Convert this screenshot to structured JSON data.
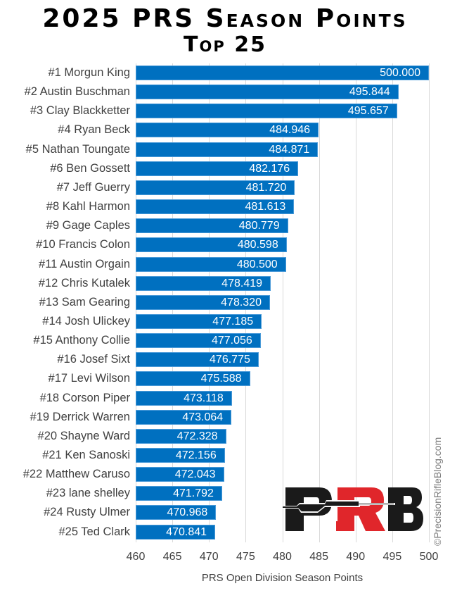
{
  "header": {
    "title": "2025 PRS Season Points",
    "subtitle": "Top 25"
  },
  "axis": {
    "xlabel": "PRS Open Division Season Points",
    "ticks": [
      "460",
      "465",
      "470",
      "475",
      "480",
      "485",
      "490",
      "495",
      "500"
    ]
  },
  "watermark": {
    "copyright": "©PrecisionRifleBlog.com",
    "logo_text": "PRB"
  },
  "colors": {
    "bar": "#0070C0",
    "logo_black": "#1a1a1a",
    "logo_red": "#e0262b"
  },
  "rows": [
    {
      "label": "#1 Morgun King",
      "value": "500.000"
    },
    {
      "label": "#2 Austin Buschman",
      "value": "495.844"
    },
    {
      "label": "#3 Clay Blackketter",
      "value": "495.657"
    },
    {
      "label": "#4 Ryan Beck",
      "value": "484.946"
    },
    {
      "label": "#5 Nathan Toungate",
      "value": "484.871"
    },
    {
      "label": "#6 Ben Gossett",
      "value": "482.176"
    },
    {
      "label": "#7 Jeff Guerry",
      "value": "481.720"
    },
    {
      "label": "#8 Kahl Harmon",
      "value": "481.613"
    },
    {
      "label": "#9 Gage Caples",
      "value": "480.779"
    },
    {
      "label": "#10 Francis Colon",
      "value": "480.598"
    },
    {
      "label": "#11 Austin Orgain",
      "value": "480.500"
    },
    {
      "label": "#12 Chris Kutalek",
      "value": "478.419"
    },
    {
      "label": "#13 Sam Gearing",
      "value": "478.320"
    },
    {
      "label": "#14 Josh Ulickey",
      "value": "477.185"
    },
    {
      "label": "#15 Anthony Collie",
      "value": "477.056"
    },
    {
      "label": "#16 Josef Sixt",
      "value": "476.775"
    },
    {
      "label": "#17 Levi Wilson",
      "value": "475.588"
    },
    {
      "label": "#18 Corson Piper",
      "value": "473.118"
    },
    {
      "label": "#19 Derrick Warren",
      "value": "473.064"
    },
    {
      "label": "#20 Shayne Ward",
      "value": "472.328"
    },
    {
      "label": "#21 Ken Sanoski",
      "value": "472.156"
    },
    {
      "label": "#22 Matthew Caruso",
      "value": "472.043"
    },
    {
      "label": "#23 lane shelley",
      "value": "471.792"
    },
    {
      "label": "#24 Rusty Ulmer",
      "value": "470.968"
    },
    {
      "label": "#25 Ted Clark",
      "value": "470.841"
    }
  ],
  "chart_data": {
    "type": "bar",
    "orientation": "horizontal",
    "title": "2025 PRS Season Points",
    "subtitle": "Top 25",
    "xlabel": "PRS Open Division Season Points",
    "ylabel": "",
    "xlim": [
      460,
      500
    ],
    "xticks": [
      460,
      465,
      470,
      475,
      480,
      485,
      490,
      495,
      500
    ],
    "grid": true,
    "legend": null,
    "categories": [
      "#1 Morgun King",
      "#2 Austin Buschman",
      "#3 Clay Blackketter",
      "#4 Ryan Beck",
      "#5 Nathan Toungate",
      "#6 Ben Gossett",
      "#7 Jeff Guerry",
      "#8 Kahl Harmon",
      "#9 Gage Caples",
      "#10 Francis Colon",
      "#11 Austin Orgain",
      "#12 Chris Kutalek",
      "#13 Sam Gearing",
      "#14 Josh Ulickey",
      "#15 Anthony Collie",
      "#16 Josef Sixt",
      "#17 Levi Wilson",
      "#18 Corson Piper",
      "#19 Derrick Warren",
      "#20 Shayne Ward",
      "#21 Ken Sanoski",
      "#22 Matthew Caruso",
      "#23 lane shelley",
      "#24 Rusty Ulmer",
      "#25 Ted Clark"
    ],
    "values": [
      500.0,
      495.844,
      495.657,
      484.946,
      484.871,
      482.176,
      481.72,
      481.613,
      480.779,
      480.598,
      480.5,
      478.419,
      478.32,
      477.185,
      477.056,
      476.775,
      475.588,
      473.118,
      473.064,
      472.328,
      472.156,
      472.043,
      471.792,
      470.968,
      470.841
    ],
    "data_labels": true,
    "annotations": [
      "©PrecisionRifleBlog.com"
    ]
  }
}
